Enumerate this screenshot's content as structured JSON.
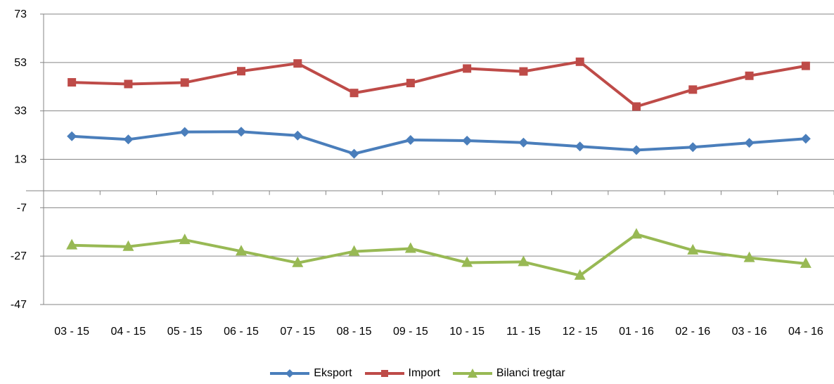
{
  "chart_data": {
    "type": "line",
    "categories": [
      "03 - 15",
      "04 - 15",
      "05 - 15",
      "06 - 15",
      "07 - 15",
      "08 - 15",
      "09 - 15",
      "10 - 15",
      "11 - 15",
      "12 - 15",
      "01 - 16",
      "02 - 16",
      "03 - 16",
      "04 - 16"
    ],
    "ylim": [
      -47,
      73
    ],
    "yticks": [
      "73",
      "53",
      "33",
      "13",
      "-7",
      "-27",
      "-47"
    ],
    "grid": true,
    "legend_position": "bottom",
    "series": [
      {
        "name": "Eksport",
        "color": "#4a7ebb",
        "marker": "diamond",
        "values": [
          22.5,
          21.2,
          24.3,
          24.4,
          22.8,
          15.3,
          21.0,
          20.7,
          19.9,
          18.3,
          16.8,
          18.0,
          19.8,
          21.5
        ]
      },
      {
        "name": "Import",
        "color": "#be4b48",
        "marker": "square",
        "values": [
          44.8,
          44.1,
          44.7,
          49.4,
          52.6,
          40.4,
          44.5,
          50.5,
          49.3,
          53.3,
          34.8,
          41.8,
          47.5,
          51.6
        ]
      },
      {
        "name": "Bilanci tregtar",
        "color": "#98b954",
        "marker": "triangle",
        "values": [
          -22.5,
          -23.1,
          -20.3,
          -25.0,
          -29.8,
          -25.1,
          -23.9,
          -29.7,
          -29.4,
          -35.0,
          -18.0,
          -24.6,
          -27.7,
          -30.1
        ]
      }
    ]
  }
}
